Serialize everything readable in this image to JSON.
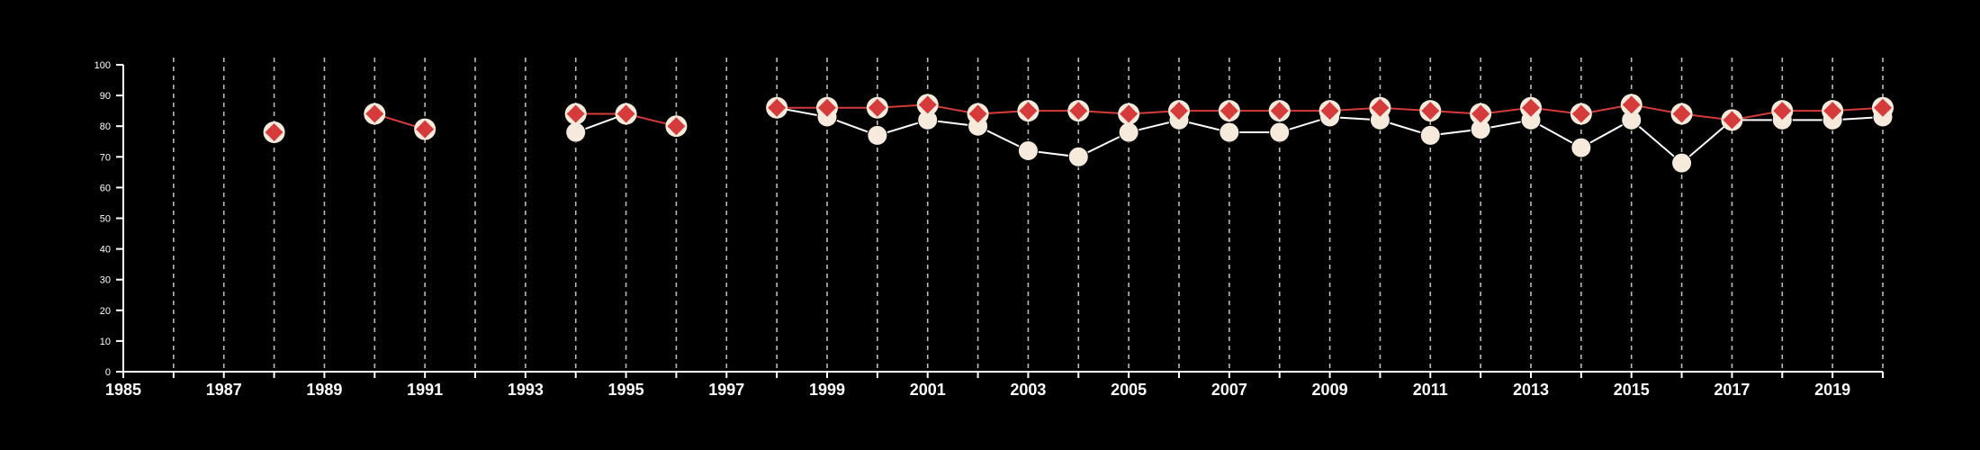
{
  "chart_data": {
    "type": "line",
    "title": "",
    "xlabel": "",
    "ylabel": "",
    "xlim": [
      1985,
      2020
    ],
    "ylim": [
      0,
      100
    ],
    "x_ticks": [
      1985,
      1987,
      1989,
      1991,
      1993,
      1995,
      1997,
      1999,
      2001,
      2003,
      2005,
      2007,
      2009,
      2011,
      2013,
      2015,
      2017,
      2019
    ],
    "y_ticks": [
      0,
      10,
      20,
      30,
      40,
      50,
      60,
      70,
      80,
      90,
      100
    ],
    "vertical_grid": "dashed, every year 1986–2020",
    "colors": {
      "background": "#000000",
      "axis": "#ffffff",
      "grid": "#bbbbbb"
    },
    "series": [
      {
        "marker": "circle",
        "fill": "#f5eadb",
        "line_color": "#ffffff",
        "points": [
          [
            1994,
            78
          ],
          [
            1995,
            84
          ],
          [
            1998,
            86
          ],
          [
            1999,
            83
          ],
          [
            2000,
            77
          ],
          [
            2001,
            82
          ],
          [
            2002,
            80
          ],
          [
            2003,
            72
          ],
          [
            2004,
            70
          ],
          [
            2005,
            78
          ],
          [
            2006,
            82
          ],
          [
            2007,
            78
          ],
          [
            2008,
            78
          ],
          [
            2009,
            83
          ],
          [
            2010,
            82
          ],
          [
            2011,
            77
          ],
          [
            2012,
            79
          ],
          [
            2013,
            82
          ],
          [
            2014,
            73
          ],
          [
            2015,
            82
          ],
          [
            2016,
            68
          ],
          [
            2017,
            82
          ],
          [
            2018,
            82
          ],
          [
            2019,
            82
          ],
          [
            2020,
            83
          ]
        ]
      },
      {
        "marker": "diamond",
        "fill": "#d63b3b",
        "line_color": "#d63b3b",
        "points": [
          [
            1988,
            78
          ],
          [
            1990,
            84
          ],
          [
            1991,
            79
          ],
          [
            1994,
            84
          ],
          [
            1995,
            84
          ],
          [
            1996,
            80
          ],
          [
            1998,
            86
          ],
          [
            1999,
            86
          ],
          [
            2000,
            86
          ],
          [
            2001,
            87
          ],
          [
            2002,
            84
          ],
          [
            2003,
            85
          ],
          [
            2004,
            85
          ],
          [
            2005,
            84
          ],
          [
            2006,
            85
          ],
          [
            2007,
            85
          ],
          [
            2008,
            85
          ],
          [
            2009,
            85
          ],
          [
            2010,
            86
          ],
          [
            2011,
            85
          ],
          [
            2012,
            84
          ],
          [
            2013,
            86
          ],
          [
            2014,
            84
          ],
          [
            2015,
            87
          ],
          [
            2016,
            84
          ],
          [
            2017,
            82
          ],
          [
            2018,
            85
          ],
          [
            2019,
            85
          ],
          [
            2020,
            86
          ]
        ]
      }
    ]
  }
}
